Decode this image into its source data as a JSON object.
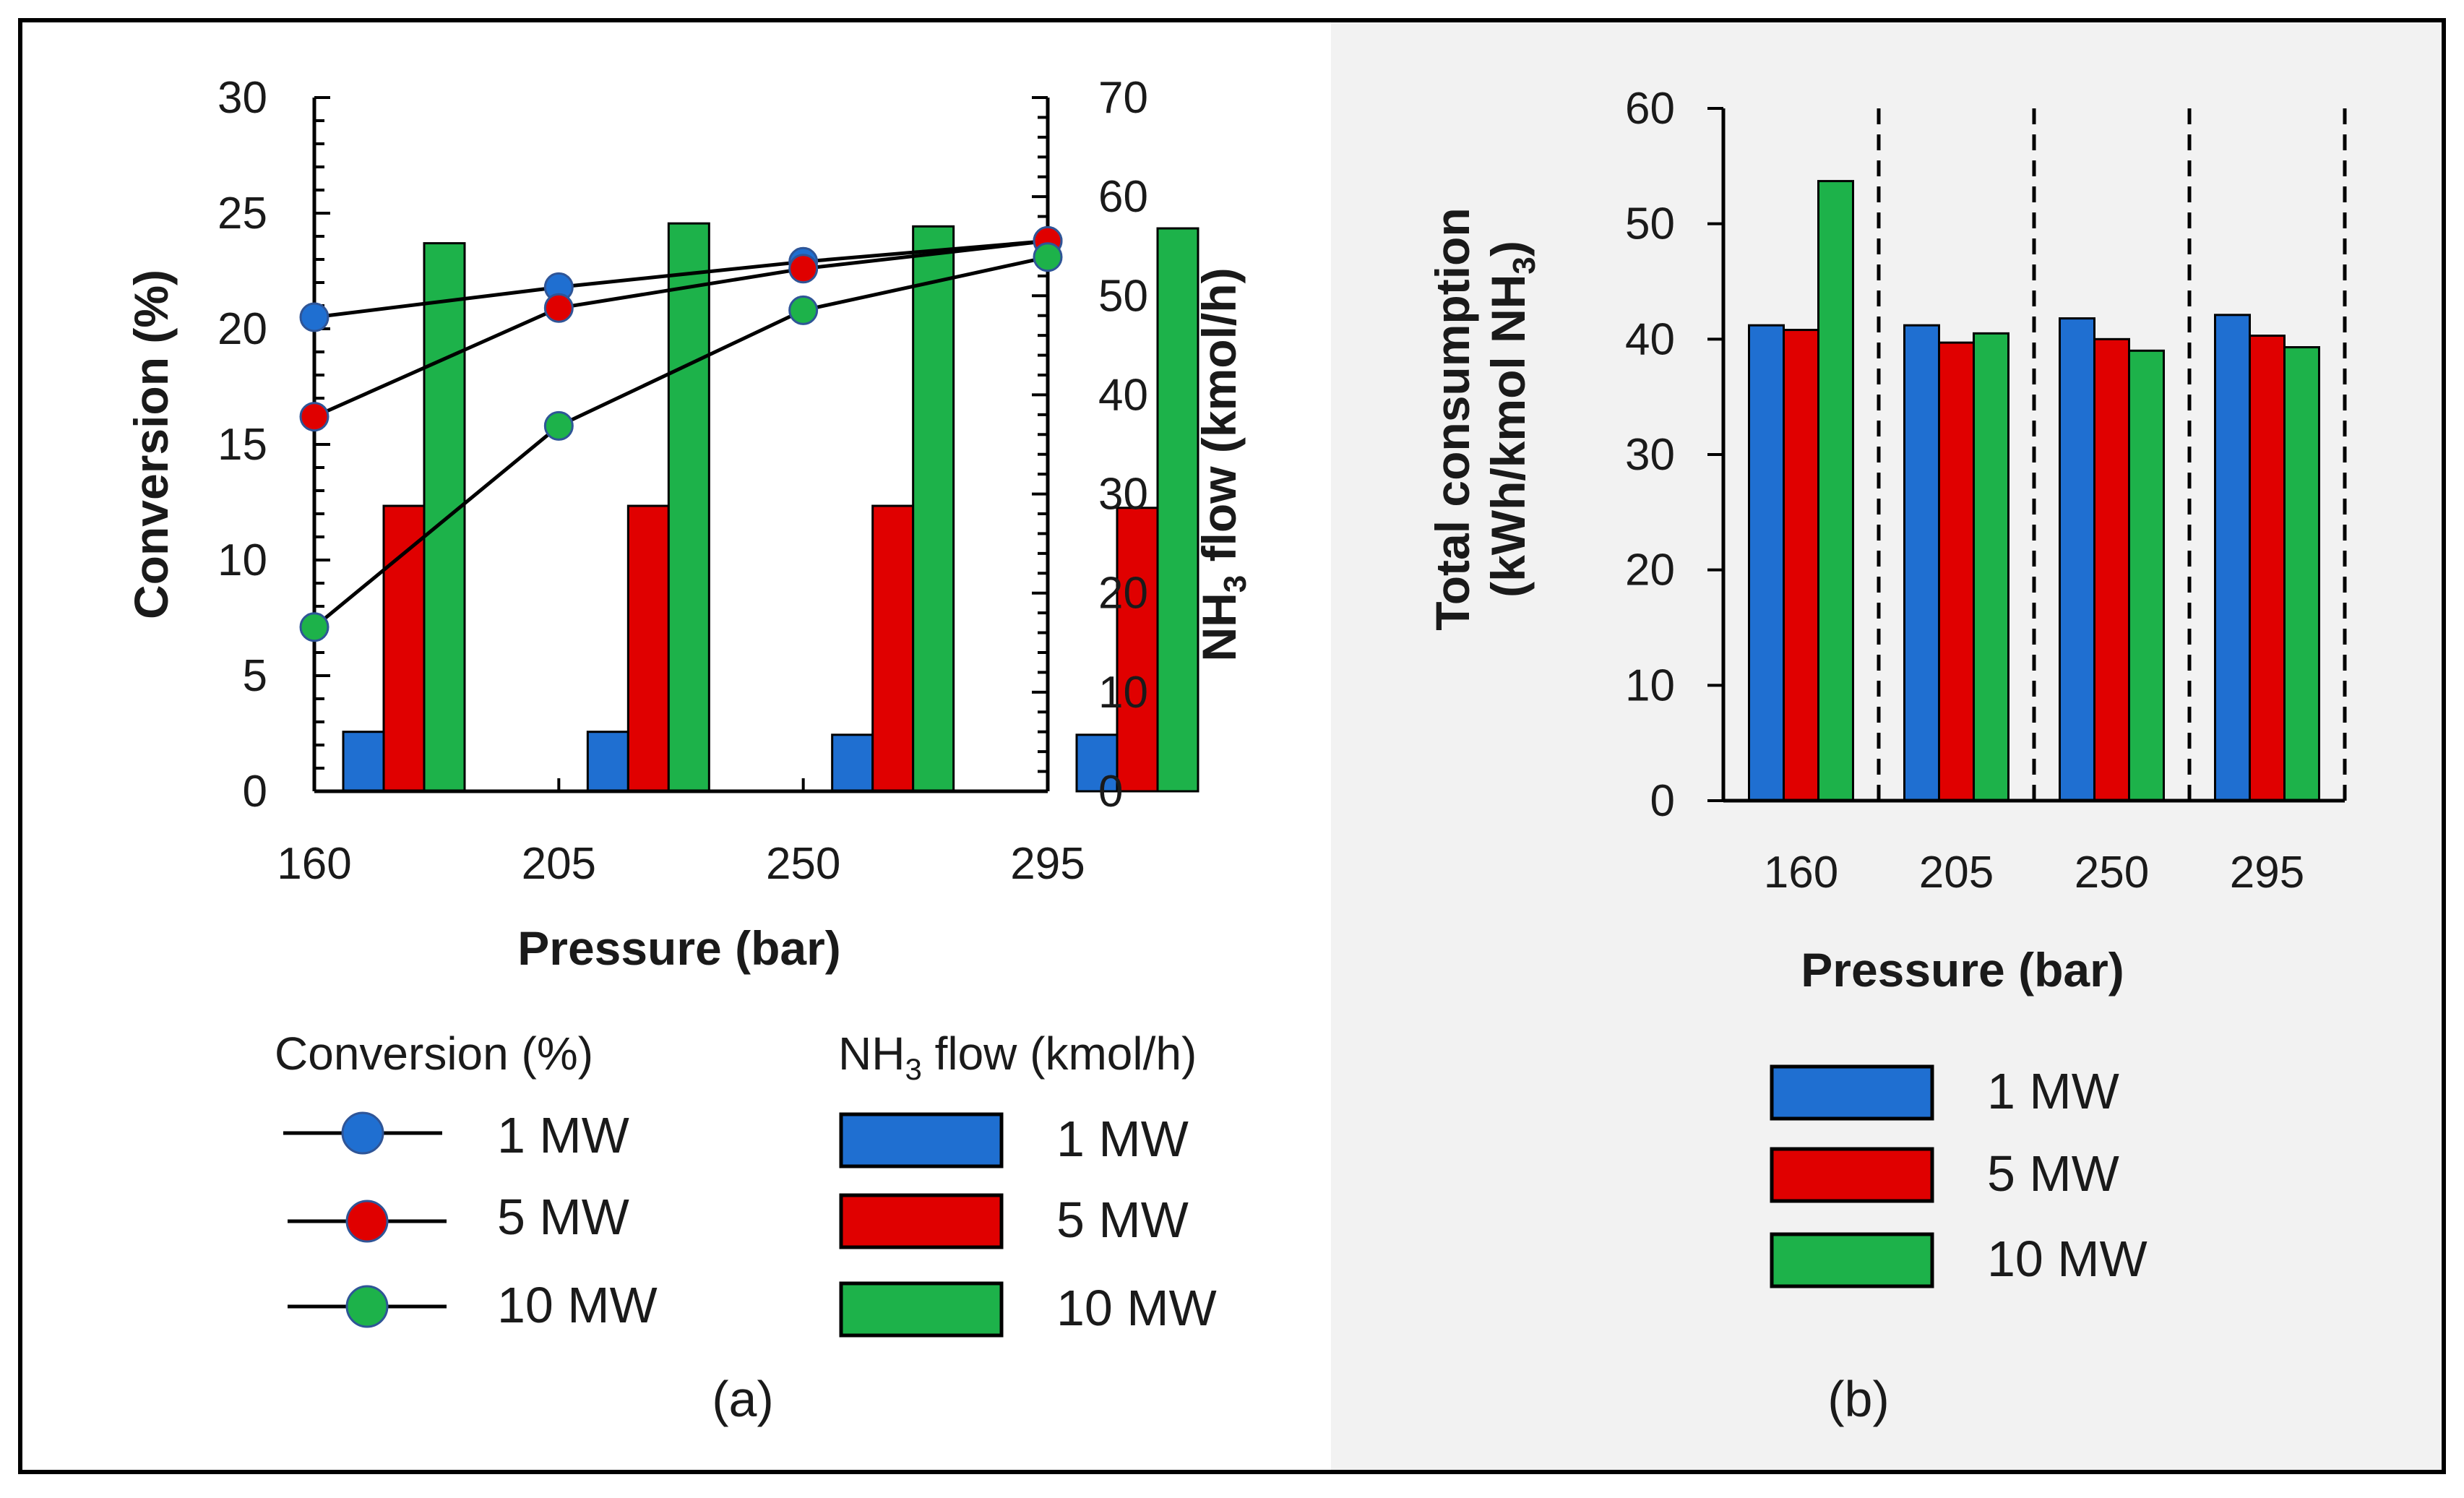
{
  "colors": {
    "1 MW": "#1f6fd1",
    "5 MW": "#e00000",
    "10 MW": "#1db24a",
    "panel_b_bg": "#f2f2f2",
    "frame": "#000000"
  },
  "chart_data": [
    {
      "panel": "(a)",
      "type": "bar+line",
      "xlabel": "Pressure (bar)",
      "ylabel_left": "Conversion (%)",
      "ylabel_right_prefix": "NH",
      "ylabel_right_sub": "3",
      "ylabel_right_suffix": " flow (kmol/h)",
      "categories": [
        "160",
        "205",
        "250",
        "295"
      ],
      "ylim_left": [
        0,
        30
      ],
      "ylim_right": [
        0,
        70
      ],
      "left_ticks": [
        "0",
        "5",
        "10",
        "15",
        "20",
        "25",
        "30"
      ],
      "right_ticks": [
        "0",
        "10",
        "20",
        "30",
        "40",
        "50",
        "60",
        "70"
      ],
      "bar_series": [
        {
          "name": "1 MW",
          "values": [
            6,
            6,
            5.7,
            5.7
          ]
        },
        {
          "name": "5 MW",
          "values": [
            28.8,
            28.8,
            28.8,
            28.6
          ]
        },
        {
          "name": "10 MW",
          "values": [
            55.3,
            57.3,
            57,
            56.8
          ]
        }
      ],
      "line_series": [
        {
          "name": "1 MW",
          "values": [
            20.5,
            21.8,
            22.9,
            23.8
          ]
        },
        {
          "name": "5 MW",
          "values": [
            16.2,
            20.9,
            22.6,
            23.8
          ]
        },
        {
          "name": "10 MW",
          "values": [
            7.1,
            15.8,
            20.8,
            23.1
          ]
        }
      ],
      "legend": {
        "line_title": "Conversion (%)",
        "bar_title_prefix": "NH",
        "bar_title_sub": "3",
        "bar_title_suffix": " flow (kmol/h)",
        "entries": [
          "1 MW",
          "5 MW",
          "10 MW"
        ]
      }
    },
    {
      "panel": "(b)",
      "type": "bar",
      "xlabel": "Pressure (bar)",
      "ylabel_line1": "Total consumption",
      "ylabel_line2_prefix": "(kWh/kmol NH",
      "ylabel_line2_sub": "3",
      "ylabel_line2_suffix": ")",
      "categories": [
        "160",
        "205",
        "250",
        "295"
      ],
      "ylim": [
        0,
        60
      ],
      "ticks": [
        "0",
        "10",
        "20",
        "30",
        "40",
        "50",
        "60"
      ],
      "series": [
        {
          "name": "1 MW",
          "values": [
            41.2,
            41.2,
            41.8,
            42.1
          ]
        },
        {
          "name": "5 MW",
          "values": [
            40.8,
            39.7,
            40,
            40.3
          ]
        },
        {
          "name": "10 MW",
          "values": [
            53.7,
            40.5,
            39,
            39.3
          ]
        }
      ],
      "legend": {
        "entries": [
          "1 MW",
          "5 MW",
          "10 MW"
        ]
      }
    }
  ]
}
